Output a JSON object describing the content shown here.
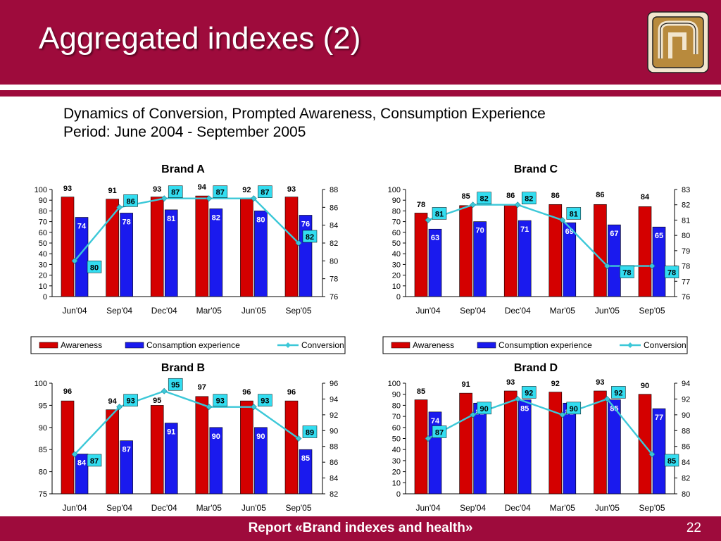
{
  "slide": {
    "title": "Aggregated indexes (2)",
    "subtitle_line1": "Dynamics of Conversion, Prompted Awareness, Consumption Experience",
    "subtitle_line2": "Period: June 2004 - September 2005",
    "footer": "Report «Brand indexes and health»",
    "page_number": "22",
    "logo_icon": "company-logo-icon",
    "colors": {
      "header": "#9e0b3c",
      "awareness": "#d40000",
      "consumption": "#1a1aee",
      "conversion": "#3cc8d8",
      "label_box": "#33ddf0"
    }
  },
  "chart_data": [
    {
      "type": "bar",
      "title": "Brand A",
      "categories": [
        "Jun'04",
        "Sep'04",
        "Dec'04",
        "Mar'05",
        "Jun'05",
        "Sep'05"
      ],
      "series": [
        {
          "name": "Awareness",
          "axis": "left",
          "values": [
            93,
            91,
            93,
            94,
            92,
            93
          ]
        },
        {
          "name": "Consamption experience",
          "axis": "left",
          "values": [
            74,
            78,
            81,
            82,
            80,
            76
          ]
        },
        {
          "name": "Conversion",
          "axis": "right",
          "type": "line",
          "values": [
            80,
            86,
            87,
            87,
            87,
            82
          ]
        }
      ],
      "ylim_left": [
        0,
        100
      ],
      "yticks_left": [
        0,
        10,
        20,
        30,
        40,
        50,
        60,
        70,
        80,
        90,
        100
      ],
      "ylim_right": [
        76,
        88
      ],
      "yticks_right": [
        76,
        78,
        80,
        82,
        84,
        86,
        88
      ],
      "legend": "bottom",
      "legend_labels": [
        "Awareness",
        "Consamption experience",
        "Conversion"
      ]
    },
    {
      "type": "bar",
      "title": "Brand C",
      "categories": [
        "Jun'04",
        "Sep'04",
        "Dec'04",
        "Mar'05",
        "Jun'05",
        "Sep'05"
      ],
      "series": [
        {
          "name": "Awareness",
          "axis": "left",
          "values": [
            78,
            85,
            86,
            86,
            86,
            84
          ]
        },
        {
          "name": "Consumption experience",
          "axis": "left",
          "values": [
            63,
            70,
            71,
            69,
            67,
            65
          ]
        },
        {
          "name": "Conversion",
          "axis": "right",
          "type": "line",
          "values": [
            81,
            82,
            82,
            81,
            78,
            78
          ]
        }
      ],
      "ylim_left": [
        0,
        100
      ],
      "yticks_left": [
        0,
        10,
        20,
        30,
        40,
        50,
        60,
        70,
        80,
        90,
        100
      ],
      "ylim_right": [
        76,
        83
      ],
      "yticks_right": [
        76,
        77,
        78,
        79,
        80,
        81,
        82,
        83
      ],
      "legend": "bottom",
      "legend_labels": [
        "Awareness",
        "Consumption experience",
        "Conversion"
      ]
    },
    {
      "type": "bar",
      "title": "Brand B",
      "categories": [
        "Jun'04",
        "Sep'04",
        "Dec'04",
        "Mar'05",
        "Jun'05",
        "Sep'05"
      ],
      "series": [
        {
          "name": "Awareness",
          "axis": "left",
          "values": [
            96,
            94,
            95,
            97,
            96,
            96
          ]
        },
        {
          "name": "Consumption experience",
          "axis": "left",
          "values": [
            84,
            87,
            91,
            90,
            90,
            85
          ]
        },
        {
          "name": "Conversion",
          "axis": "right",
          "type": "line",
          "values": [
            87,
            93,
            95,
            93,
            93,
            89
          ]
        }
      ],
      "ylim_left": [
        75,
        100
      ],
      "yticks_left": [
        75,
        80,
        85,
        90,
        95,
        100
      ],
      "ylim_right": [
        82,
        96
      ],
      "yticks_right": [
        82,
        84,
        86,
        88,
        90,
        92,
        94,
        96
      ],
      "legend": "none"
    },
    {
      "type": "bar",
      "title": "Brand D",
      "categories": [
        "Jun'04",
        "Sep'04",
        "Dec'04",
        "Mar'05",
        "Jun'05",
        "Sep'05"
      ],
      "series": [
        {
          "name": "Awareness",
          "axis": "left",
          "values": [
            85,
            91,
            93,
            92,
            93,
            90
          ]
        },
        {
          "name": "Consumption experience",
          "axis": "left",
          "values": [
            74,
            82,
            85,
            82,
            85,
            77
          ]
        },
        {
          "name": "Conversion",
          "axis": "right",
          "type": "line",
          "values": [
            87,
            90,
            92,
            90,
            92,
            85
          ]
        }
      ],
      "ylim_left": [
        0,
        100
      ],
      "yticks_left": [
        0,
        10,
        20,
        30,
        40,
        50,
        60,
        70,
        80,
        90,
        100
      ],
      "ylim_right": [
        80,
        94
      ],
      "yticks_right": [
        80,
        82,
        84,
        86,
        88,
        90,
        92,
        94
      ],
      "legend": "none"
    }
  ]
}
